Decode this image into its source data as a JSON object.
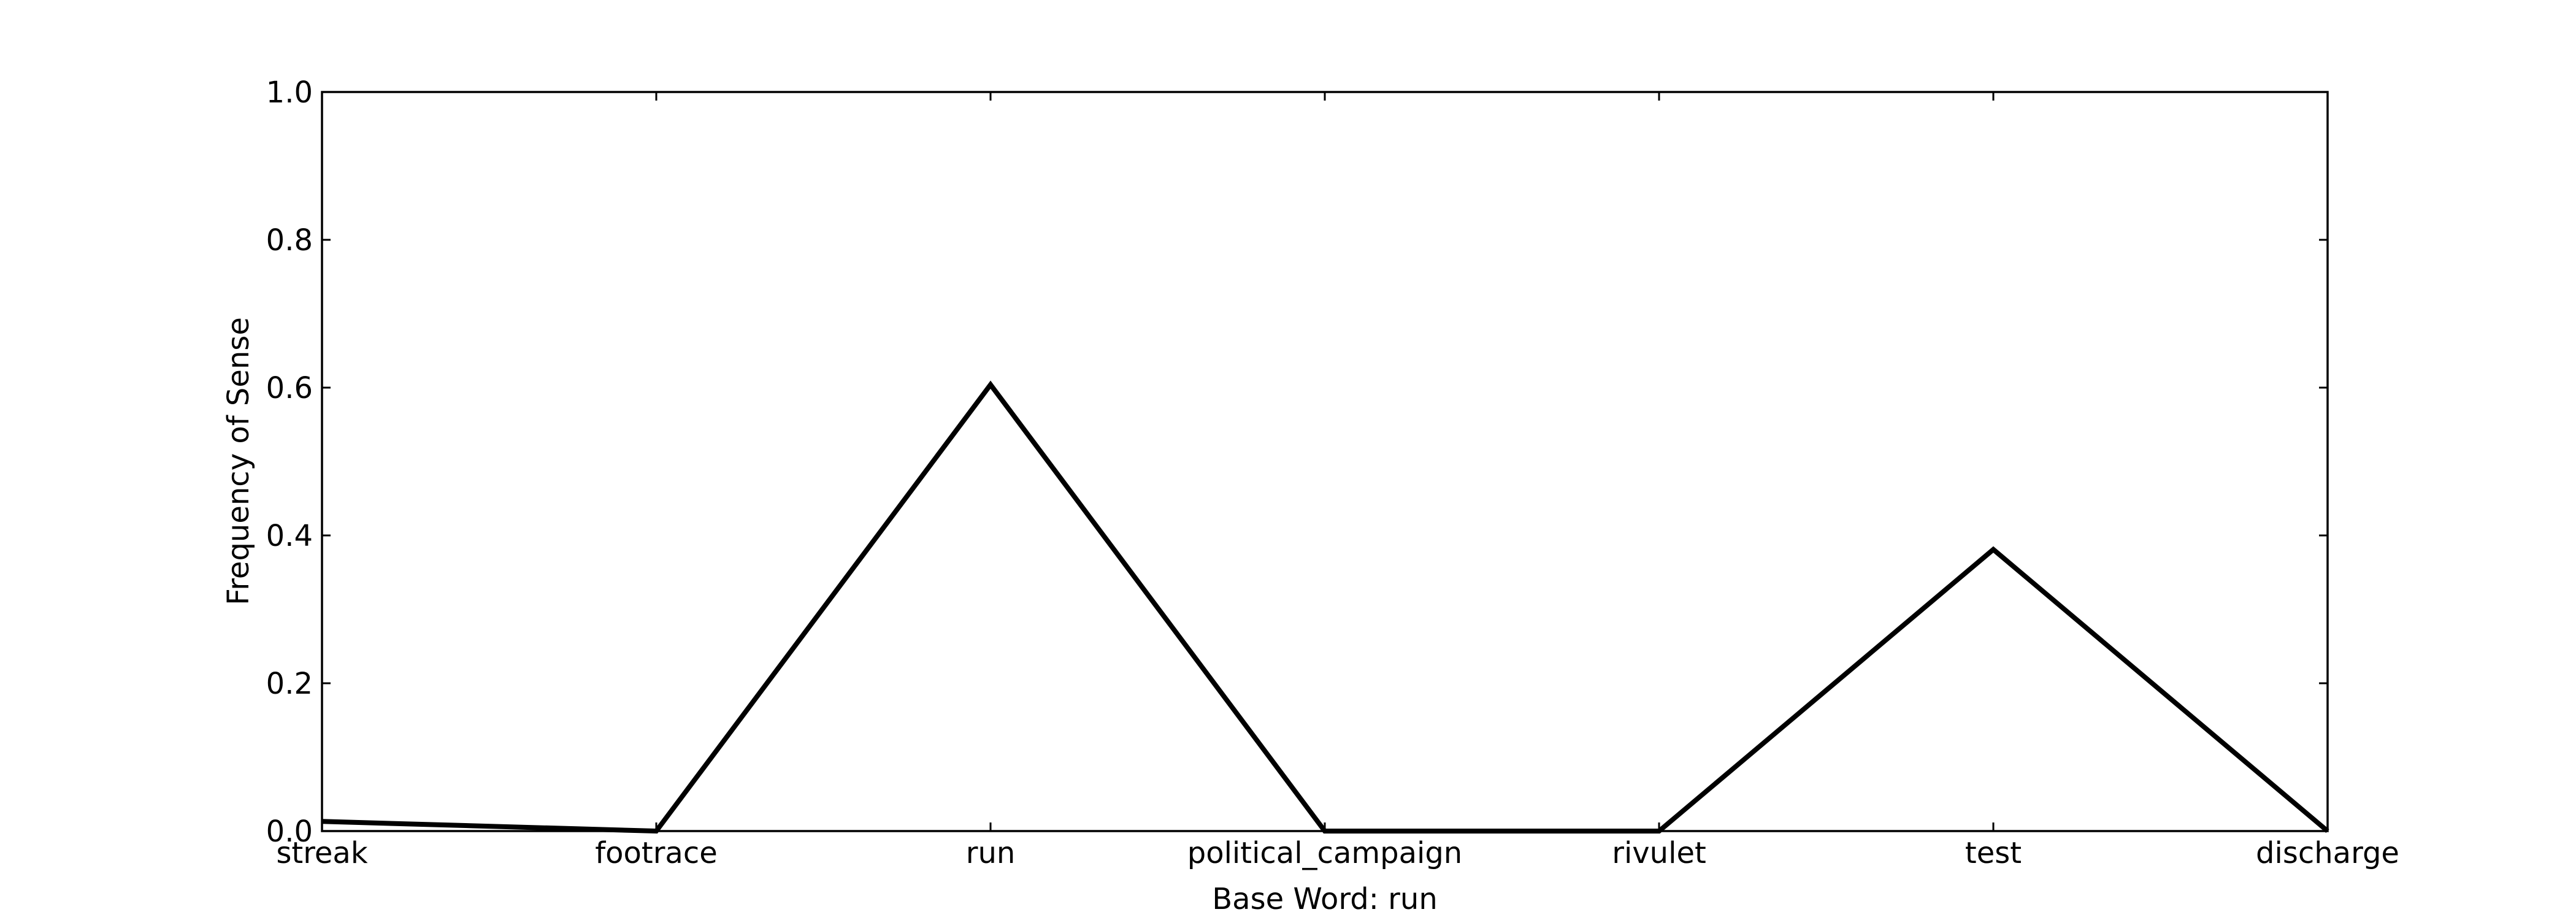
{
  "chart_data": {
    "type": "line",
    "title": "",
    "xlabel": "Base Word: run",
    "ylabel": "Frequency of Sense",
    "categories": [
      "streak",
      "footrace",
      "run",
      "political_campaign",
      "rivulet",
      "test",
      "discharge"
    ],
    "series": [
      {
        "values": [
          0.013,
          0.0,
          0.604,
          0.0,
          0.0,
          0.381,
          0.0
        ]
      }
    ],
    "ylim": [
      0.0,
      1.0
    ],
    "yticks": [
      "0.0",
      "0.2",
      "0.4",
      "0.6",
      "0.8",
      "1.0"
    ],
    "grid": false,
    "line_color": "#000000"
  }
}
